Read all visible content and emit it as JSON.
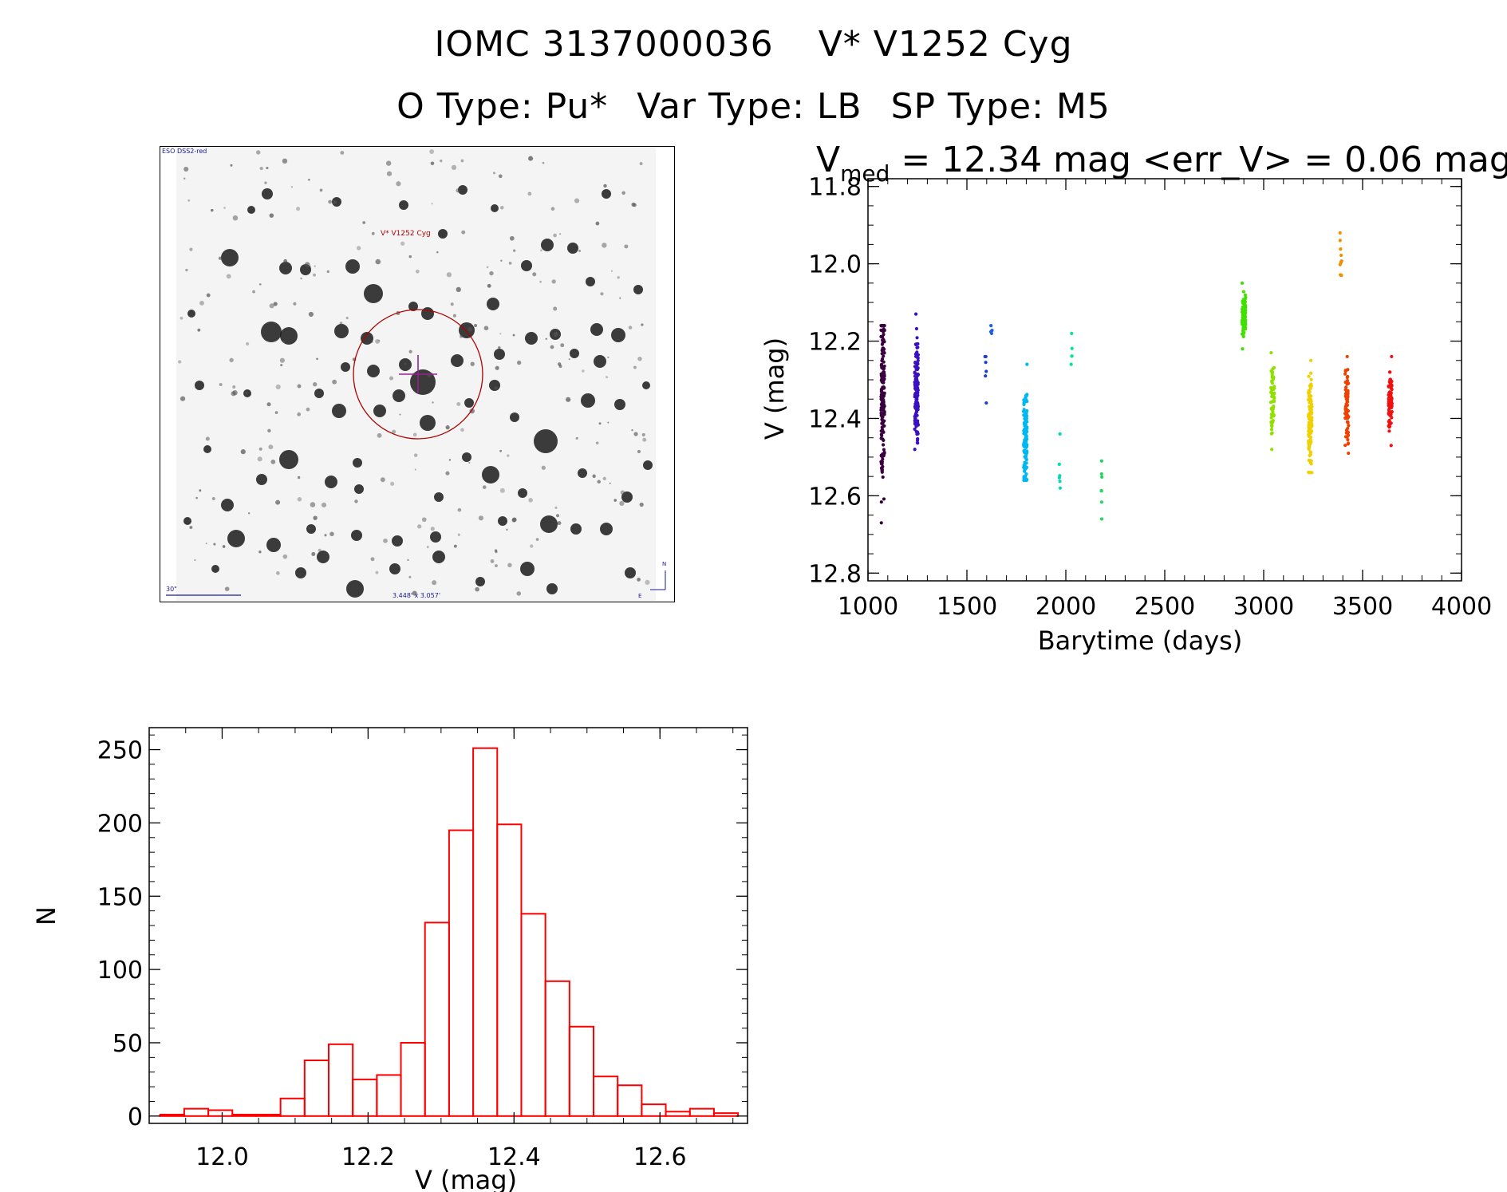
{
  "header": {
    "star_id": "IOMC 3137000036",
    "star_name": "V* V1252 Cyg",
    "otype": "O Type: Pu*",
    "vartype": "Var Type: LB",
    "sptype": "SP Type: M5"
  },
  "finder": {
    "survey_label": "ESO DSS2-red",
    "target_label": "V* V1252 Cyg",
    "scale_label": "30\"",
    "fov_label": "3.448' x 3.057'",
    "north_label": "N",
    "east_label": "E",
    "colors": {
      "frame": "#000000",
      "circle": "#b00000",
      "text_blue": "#1a1a9a",
      "cross": "#9a2090"
    }
  },
  "chart_data": [
    {
      "type": "scatter",
      "title_prefix": "V",
      "title_sub": "med",
      "title_rest": " = 12.34 mag <err_V> = 0.06 mag",
      "xlabel": "Barytime (days)",
      "ylabel": "V (mag)",
      "xlim": [
        1000,
        4000
      ],
      "ylim": [
        12.82,
        11.78
      ],
      "y_inverted": true,
      "xticks": [
        1000,
        1500,
        2000,
        2500,
        3000,
        3500,
        4000
      ],
      "yticks": [
        "11.8",
        "12.0",
        "12.2",
        "12.4",
        "12.6",
        "12.8"
      ],
      "groups": [
        {
          "x": 1075,
          "ymin": 12.16,
          "ymax": 12.67,
          "center": 12.33,
          "n": 170,
          "color": "#3a0040"
        },
        {
          "x": 1245,
          "ymin": 12.13,
          "ymax": 12.48,
          "center": 12.33,
          "n": 130,
          "color": "#3a10c0"
        },
        {
          "x": 1595,
          "ymin": 12.24,
          "ymax": 12.36,
          "center": 12.28,
          "n": 6,
          "color": "#1a40d0"
        },
        {
          "x": 1625,
          "ymin": 12.16,
          "ymax": 12.18,
          "center": 12.17,
          "n": 4,
          "color": "#1a60e0"
        },
        {
          "x": 1795,
          "ymin": 12.26,
          "ymax": 12.56,
          "center": 12.44,
          "n": 130,
          "color": "#00b8f0"
        },
        {
          "x": 1970,
          "ymin": 12.44,
          "ymax": 12.58,
          "center": 12.52,
          "n": 6,
          "color": "#00d8b8"
        },
        {
          "x": 2030,
          "ymin": 12.18,
          "ymax": 12.26,
          "center": 12.22,
          "n": 5,
          "color": "#00e890"
        },
        {
          "x": 2180,
          "ymin": 12.51,
          "ymax": 12.66,
          "center": 12.58,
          "n": 7,
          "color": "#20d860"
        },
        {
          "x": 2900,
          "ymin": 12.05,
          "ymax": 12.22,
          "center": 12.14,
          "n": 90,
          "color": "#40e000"
        },
        {
          "x": 3045,
          "ymin": 12.23,
          "ymax": 12.48,
          "center": 12.35,
          "n": 60,
          "color": "#90e000"
        },
        {
          "x": 3235,
          "ymin": 12.25,
          "ymax": 12.54,
          "center": 12.41,
          "n": 120,
          "color": "#f0d000"
        },
        {
          "x": 3390,
          "ymin": 11.92,
          "ymax": 12.03,
          "center": 11.98,
          "n": 10,
          "color": "#f09000"
        },
        {
          "x": 3420,
          "ymin": 12.24,
          "ymax": 12.49,
          "center": 12.37,
          "n": 70,
          "color": "#f04000"
        },
        {
          "x": 3640,
          "ymin": 12.24,
          "ymax": 12.47,
          "center": 12.36,
          "n": 90,
          "color": "#f01010"
        }
      ]
    },
    {
      "type": "bar",
      "xlabel": "V (mag)",
      "ylabel": "N",
      "xlim": [
        11.9,
        12.72
      ],
      "ylim": [
        -5,
        265
      ],
      "bin_width": 0.033,
      "bin_start": 11.915,
      "values": [
        1,
        5,
        4,
        1,
        1,
        12,
        38,
        49,
        25,
        28,
        50,
        132,
        195,
        251,
        199,
        138,
        92,
        61,
        27,
        21,
        8,
        3,
        5,
        2
      ],
      "xticks": [
        "12.0",
        "12.2",
        "12.4",
        "12.6"
      ],
      "yticks": [
        "0",
        "50",
        "100",
        "150",
        "200",
        "250"
      ],
      "color": "#ff0000"
    }
  ]
}
